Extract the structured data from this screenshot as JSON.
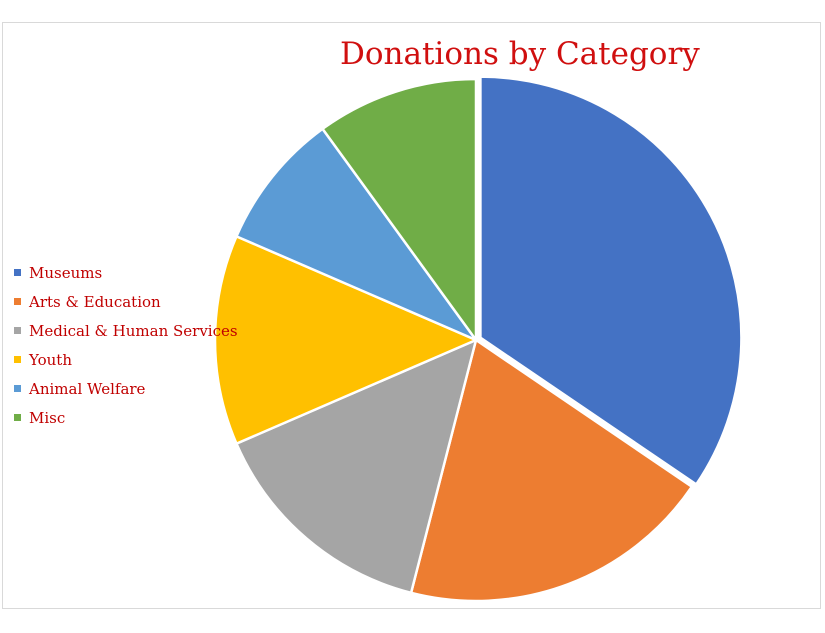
{
  "chart_data": {
    "type": "pie",
    "title": "Donations by Category",
    "legend_position": "left",
    "slices": [
      {
        "label": "Museums",
        "value": 34.5,
        "color": "#4472c4"
      },
      {
        "label": "Arts & Education",
        "value": 19.5,
        "color": "#ed7d31"
      },
      {
        "label": "Medical & Human Services",
        "value": 14.5,
        "color": "#a5a5a5"
      },
      {
        "label": "Youth",
        "value": 13,
        "color": "#ffc000"
      },
      {
        "label": "Animal Welfare",
        "value": 8.5,
        "color": "#5b9bd5"
      },
      {
        "label": "Misc",
        "value": 10,
        "color": "#70ad47"
      }
    ]
  }
}
